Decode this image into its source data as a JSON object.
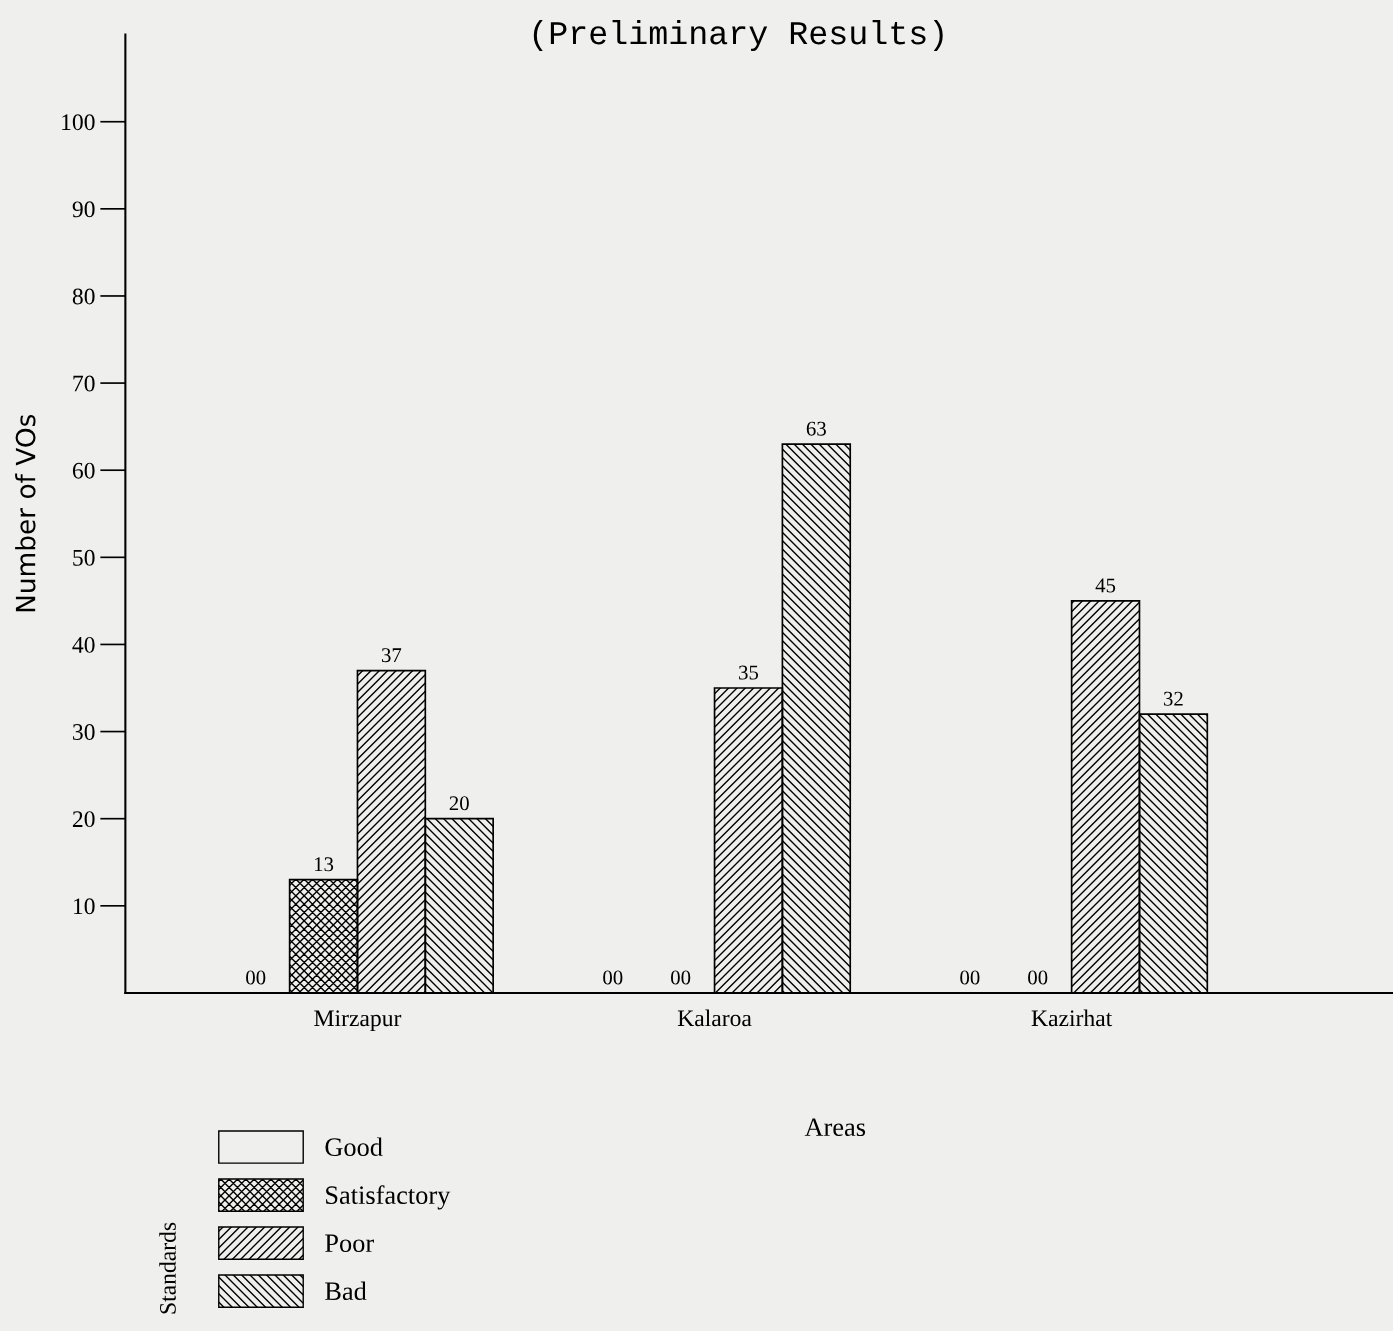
{
  "chart_data": {
    "type": "bar",
    "title": "(Preliminary Results)",
    "xlabel": "Areas",
    "ylabel": "Number of VOs",
    "legend_title": "Standards",
    "categories": [
      "Mirzapur",
      "Kalaroa",
      "Kazirhat"
    ],
    "series": [
      {
        "name": "Good",
        "color": "#000000",
        "values": [
          0,
          0,
          0
        ],
        "value_labels": [
          "00",
          "00",
          "00"
        ]
      },
      {
        "name": "Satisfactory",
        "color": "#000000",
        "values": [
          13,
          0,
          0
        ],
        "value_labels": [
          "13",
          "00",
          "00"
        ]
      },
      {
        "name": "Poor",
        "color": "#000000",
        "values": [
          37,
          35,
          45
        ],
        "value_labels": [
          "37",
          "35",
          "45"
        ]
      },
      {
        "name": "Bad",
        "color": "#000000",
        "values": [
          20,
          63,
          32
        ],
        "value_labels": [
          "20",
          "63",
          "32"
        ]
      }
    ],
    "ylim": [
      0,
      110
    ],
    "yticks": [
      10,
      20,
      30,
      40,
      50,
      60,
      70,
      80,
      90,
      100
    ],
    "grid": false,
    "legend": "bottom left"
  }
}
